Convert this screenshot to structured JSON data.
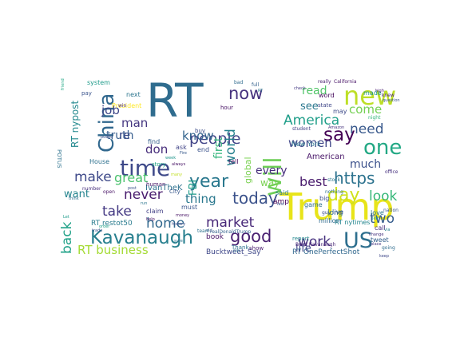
{
  "words": [
    {
      "text": "RT",
      "c": "#2f6c8e"
    },
    {
      "text": "Trump",
      "c": "#e8e419"
    },
    {
      "text": "will",
      "c": "#6ece58"
    },
    {
      "text": "time",
      "c": "#3e4989"
    },
    {
      "text": "new",
      "c": "#bddf26"
    },
    {
      "text": "China",
      "c": "#31688e"
    },
    {
      "text": "Kavanaugh",
      "c": "#277f8e"
    },
    {
      "text": "US",
      "c": "#2e6f8e"
    },
    {
      "text": "one",
      "c": "#22a884"
    },
    {
      "text": "say",
      "c": "#440154"
    },
    {
      "text": "people",
      "c": "#414487"
    },
    {
      "text": "year",
      "c": "#2a788e"
    },
    {
      "text": "day",
      "c": "#d0e11c"
    },
    {
      "text": "now",
      "c": "#46327e"
    },
    {
      "text": "https",
      "c": "#2c728e"
    },
    {
      "text": "good",
      "c": "#481f70"
    },
    {
      "text": "America",
      "c": "#1f9e89"
    },
    {
      "text": "world",
      "c": "#26828e"
    },
    {
      "text": "today",
      "c": "#3b528b"
    },
    {
      "text": "market",
      "c": "#482878"
    },
    {
      "text": "take",
      "c": "#443983"
    },
    {
      "text": "never",
      "c": "#481b6d"
    },
    {
      "text": "home",
      "c": "#31688e"
    },
    {
      "text": "make",
      "c": "#3e4989"
    },
    {
      "text": "back",
      "c": "#1fa187"
    },
    {
      "text": "work",
      "c": "#46317e"
    },
    {
      "text": "look",
      "c": "#35b779"
    },
    {
      "text": "two",
      "c": "#365c8d"
    },
    {
      "text": "need",
      "c": "#38588c"
    },
    {
      "text": "great",
      "c": "#4ac16d"
    },
    {
      "text": "thing",
      "c": "#2a788e"
    },
    {
      "text": "women",
      "c": "#404688"
    },
    {
      "text": "best",
      "c": "#481a6c"
    },
    {
      "text": "RT business",
      "c": "#a5db36"
    },
    {
      "text": "know",
      "c": "#33638d"
    },
    {
      "text": "don",
      "c": "#472d7b"
    },
    {
      "text": "job",
      "c": "#3f4788"
    },
    {
      "text": "man",
      "c": "#453781"
    },
    {
      "text": "first",
      "c": "#31b57b"
    },
    {
      "text": "FBI",
      "c": "#1e9c89"
    },
    {
      "text": "truth",
      "c": "#365d8d"
    },
    {
      "text": "every",
      "c": "#472e7c"
    },
    {
      "text": "want",
      "c": "#25848e"
    },
    {
      "text": "much",
      "c": "#3b518b"
    },
    {
      "text": "come",
      "c": "#75d054"
    },
    {
      "text": "read",
      "c": "#52c569"
    },
    {
      "text": "see",
      "c": "#2a778e"
    },
    {
      "text": "re",
      "c": "#3d4d8a"
    },
    {
      "text": "life",
      "c": "#404588"
    },
    {
      "text": "RT nypost",
      "c": "#23898e"
    },
    {
      "text": "global",
      "c": "#7ad151"
    },
    {
      "text": "way",
      "c": "#7ad151"
    },
    {
      "text": "American",
      "c": "#481668"
    },
    {
      "text": "Bucktweet_Say",
      "c": "#3f4889"
    },
    {
      "text": "RT OnePerfectShot",
      "c": "#31688e"
    },
    {
      "text": "RT restot50",
      "c": "#297b8e"
    },
    {
      "text": "IvanTheK",
      "c": "#2d718e"
    },
    {
      "text": "long",
      "c": "#2c738e"
    },
    {
      "text": "said",
      "c": "#287c8e"
    },
    {
      "text": "amp",
      "c": "#440154"
    },
    {
      "text": "call",
      "c": "#472c7a"
    },
    {
      "text": "live",
      "c": "#3a548c"
    },
    {
      "text": "book",
      "c": "#481467"
    },
    {
      "text": "House",
      "c": "#2d708e"
    },
    {
      "text": "may",
      "c": "#3e4a89"
    },
    {
      "text": "New York",
      "c": "#2b748e"
    },
    {
      "text": "RT nytimes",
      "c": "#24868e"
    },
    {
      "text": "made",
      "c": "#1f958b"
    },
    {
      "text": "word",
      "c": "#460a5d"
    },
    {
      "text": "show",
      "c": "#481b6d"
    },
    {
      "text": "game",
      "c": "#2e6e8e"
    },
    {
      "text": "big",
      "c": "#3c508b"
    },
    {
      "text": "million",
      "c": "#2f6b8e"
    },
    {
      "text": "tweet",
      "c": "#34608d"
    },
    {
      "text": "find",
      "c": "#355f8d"
    },
    {
      "text": "ask",
      "c": "#414487"
    },
    {
      "text": "end",
      "c": "#3b528b"
    },
    {
      "text": "story",
      "c": "#20a386"
    },
    {
      "text": "human",
      "c": "#481668"
    },
    {
      "text": "next",
      "c": "#2b758e"
    },
    {
      "text": "system",
      "c": "#1e9b8a"
    },
    {
      "text": "POTUS",
      "c": "#2c728e"
    },
    {
      "text": "President",
      "c": "#fde725"
    },
    {
      "text": "hour",
      "c": "#471164"
    },
    {
      "text": "buy",
      "c": "#3d4e8a"
    },
    {
      "text": "state",
      "c": "#3f4788"
    },
    {
      "text": "report",
      "c": "#23898e"
    },
    {
      "text": "Thank",
      "c": "#2d708e"
    },
    {
      "text": "tell",
      "c": "#46085c"
    },
    {
      "text": "City",
      "c": "#38588c"
    },
    {
      "text": "must",
      "c": "#39568c"
    },
    {
      "text": "claim",
      "c": "#424086"
    },
    {
      "text": "love",
      "c": "#2a768e"
    },
    {
      "text": "realDonaldTrump",
      "c": "#34618d"
    },
    {
      "text": "Brett Kavanaugh",
      "c": "#482576"
    },
    {
      "text": "California",
      "c": "#481467"
    },
    {
      "text": "really",
      "c": "#481f70"
    },
    {
      "text": "bad",
      "c": "#2f6b8e"
    },
    {
      "text": "pay",
      "c": "#3a548c"
    },
    {
      "text": "friend",
      "c": "#22a785"
    },
    {
      "text": "open",
      "c": "#481467"
    },
    {
      "text": "last",
      "c": "#39558c"
    },
    {
      "text": "Oh",
      "c": "#2e6f8e"
    },
    {
      "text": "going",
      "c": "#2f6c8e"
    },
    {
      "text": "knew",
      "c": "#482071"
    },
    {
      "text": "question",
      "c": "#3a538b"
    },
    {
      "text": "student",
      "c": "#424186"
    },
    {
      "text": "nothing",
      "c": "#2c738e"
    },
    {
      "text": "guy",
      "c": "#3d4e8a"
    },
    {
      "text": "Amazon",
      "c": "#46337e"
    },
    {
      "text": "office",
      "c": "#46307e"
    },
    {
      "text": "nation",
      "c": "#39568c"
    },
    {
      "text": "night",
      "c": "#35b779"
    },
    {
      "text": "order",
      "c": "#1fa088"
    },
    {
      "text": "Let",
      "c": "#1e9b8a"
    },
    {
      "text": "always",
      "c": "#471365"
    },
    {
      "text": "Fire",
      "c": "#38598c"
    },
    {
      "text": "week",
      "c": "#1f958b"
    },
    {
      "text": "run",
      "c": "#2b758e"
    },
    {
      "text": "think",
      "c": "#2e6f8e"
    },
    {
      "text": "number",
      "c": "#472f7d"
    },
    {
      "text": "trade",
      "c": "#3b528b"
    },
    {
      "text": "sure",
      "c": "#2c728e"
    },
    {
      "text": "old",
      "c": "#3a538b"
    },
    {
      "text": "many",
      "c": "#c2df23"
    },
    {
      "text": "help",
      "c": "#471063"
    },
    {
      "text": "team",
      "c": "#2d718e"
    },
    {
      "text": "change",
      "c": "#46327e"
    },
    {
      "text": "keep",
      "c": "#3f4889"
    },
    {
      "text": "place",
      "c": "#453781"
    },
    {
      "text": "via",
      "c": "#26828e"
    },
    {
      "text": "stock",
      "c": "#2a788e"
    },
    {
      "text": "Jeff",
      "c": "#1f9a8a"
    },
    {
      "text": "public",
      "c": "#3c4f8a"
    },
    {
      "text": "win",
      "c": "#482878"
    },
    {
      "text": "post",
      "c": "#3b518b"
    },
    {
      "text": "money",
      "c": "#471365"
    },
    {
      "text": "history",
      "c": "#3d4d8a"
    },
    {
      "text": "high",
      "c": "#481d6f"
    },
    {
      "text": "check",
      "c": "#443a83"
    },
    {
      "text": "full",
      "c": "#34618d"
    },
    {
      "text": "RT",
      "c": "#2a788e"
    }
  ]
}
